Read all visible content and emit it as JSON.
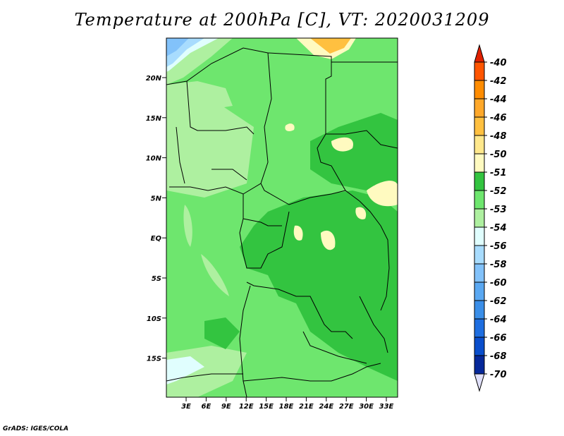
{
  "title": "Temperature at 200hPa [C], VT: 2020031209",
  "credit": "GrADS: IGES/COLA",
  "map": {
    "lat_labels": [
      "20N",
      "15N",
      "10N",
      "5N",
      "EQ",
      "5S",
      "10S",
      "15S"
    ],
    "lon_labels": [
      "3E",
      "6E",
      "9E",
      "12E",
      "15E",
      "18E",
      "21E",
      "24E",
      "27E",
      "30E",
      "33E"
    ]
  },
  "colorbar": {
    "labels": [
      "-40",
      "-42",
      "-44",
      "-46",
      "-48",
      "-50",
      "-51",
      "-52",
      "-53",
      "-54",
      "-56",
      "-58",
      "-60",
      "-62",
      "-64",
      "-66",
      "-68",
      "-70"
    ],
    "colors": [
      "#ff2a00",
      "#ff5500",
      "#ff8c00",
      "#ffa82a",
      "#ffc040",
      "#ffe88c",
      "#fffac0",
      "#33c440",
      "#6ee66e",
      "#aef0a0",
      "#e0fefe",
      "#a8dcfe",
      "#82c2fa",
      "#5aa8f2",
      "#3a8ee8",
      "#1e6ee0",
      "#0a4ecc",
      "#06289a",
      "#0a0a6e"
    ],
    "top_arrow_color": "#e02000",
    "bottom_arrow_color": "#e0e0fa"
  }
}
